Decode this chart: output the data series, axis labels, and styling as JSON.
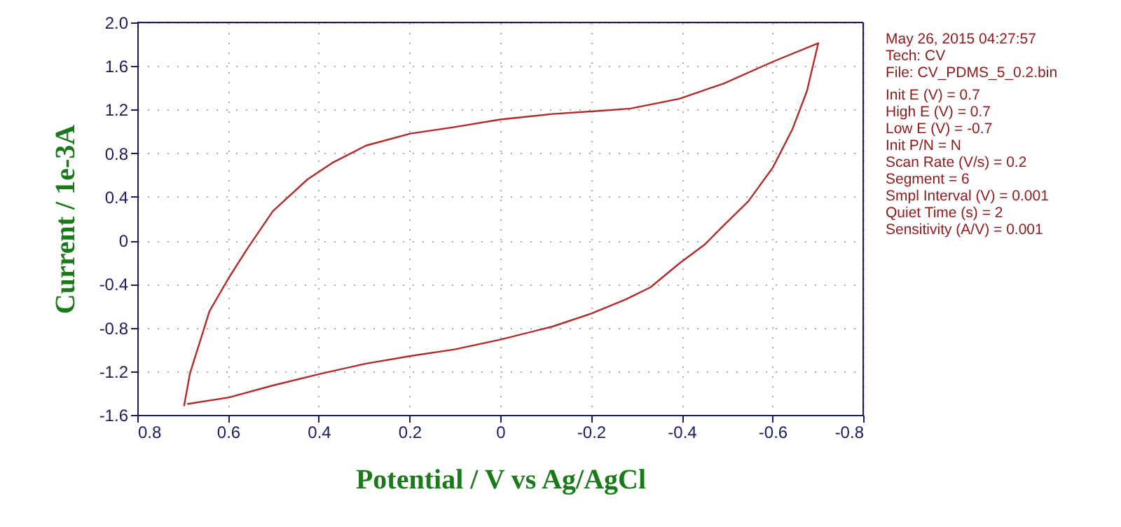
{
  "chart_data": {
    "type": "line",
    "xlabel": "Potential / V vs Ag/AgCl",
    "ylabel": "Current / 1e-3A",
    "x": [
      0.697,
      0.684,
      0.641,
      0.598,
      0.555,
      0.501,
      0.425,
      0.371,
      0.296,
      0.198,
      0.101,
      0.0,
      -0.115,
      -0.223,
      -0.287,
      -0.395,
      -0.493,
      -0.601,
      -0.701,
      -0.676,
      -0.644,
      -0.601,
      -0.547,
      -0.493,
      -0.45,
      -0.395,
      -0.331,
      -0.277,
      -0.201,
      -0.115,
      0.0,
      0.101,
      0.198,
      0.296,
      0.393,
      0.501,
      0.598,
      0.69
    ],
    "series": [
      {
        "color": "#b22a2a",
        "values": [
          -1.52,
          -1.22,
          -0.65,
          -0.34,
          -0.06,
          0.27,
          0.56,
          0.71,
          0.87,
          0.98,
          1.04,
          1.11,
          1.16,
          1.19,
          1.21,
          1.3,
          1.44,
          1.64,
          1.81,
          1.37,
          1.02,
          0.67,
          0.36,
          0.14,
          -0.04,
          -0.21,
          -0.43,
          -0.54,
          -0.67,
          -0.79,
          -0.91,
          -1.0,
          -1.06,
          -1.13,
          -1.22,
          -1.33,
          -1.44,
          -1.5
        ]
      }
    ],
    "xlim": [
      0.8,
      -0.8
    ],
    "xticks": [
      0.8,
      0.6,
      0.4,
      0.2,
      0,
      -0.2,
      -0.4,
      -0.6,
      -0.8
    ],
    "ylim": [
      -1.6,
      2.0
    ],
    "yticks": [
      -1.6,
      -1.2,
      -0.8,
      -0.4,
      0,
      0.4,
      0.8,
      1.2,
      1.6,
      {
        "value": 2.0,
        "label": "2.0"
      }
    ],
    "grid": true,
    "line_style": "solid",
    "annotations": [
      "May 26, 2015   04:27:57",
      "Tech: CV",
      "File: CV_PDMS_5_0.2.bin",
      "Init E (V) = 0.7",
      "High E (V) = 0.7",
      "Low E (V) = -0.7",
      "Init P/N = N",
      "Scan Rate (V/s) = 0.2",
      "Segment = 6",
      "Smpl Interval (V) = 0.001",
      "Quiet Time (s) = 2",
      "Sensitivity (A/V) = 0.001"
    ]
  }
}
